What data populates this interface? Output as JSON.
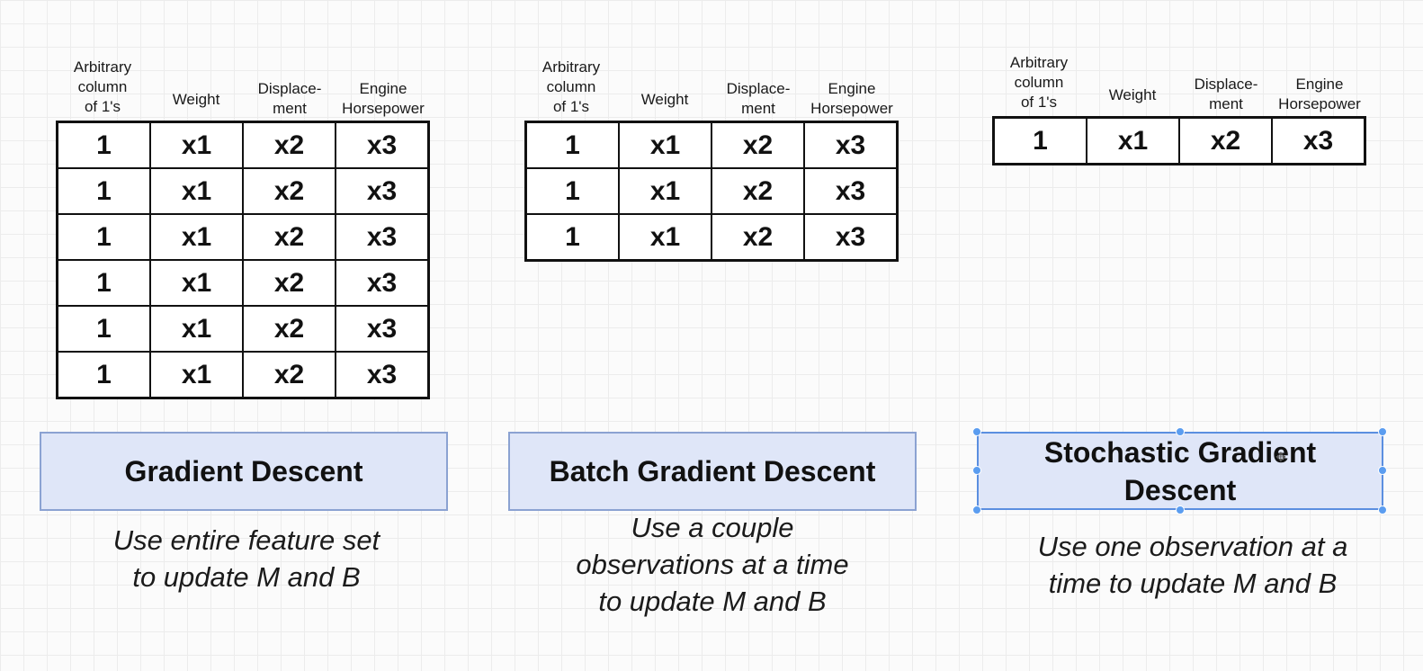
{
  "columns": [
    "Arbitrary\ncolumn\nof 1's",
    "Weight",
    "Displace-\nment",
    "Engine\nHorsepower"
  ],
  "row_values": [
    "1",
    "x1",
    "x2",
    "x3"
  ],
  "panels": [
    {
      "rows": 6,
      "title": "Gradient Descent",
      "description": "Use entire feature set\nto update M and B"
    },
    {
      "rows": 3,
      "title": "Batch Gradient Descent",
      "description": "Use a couple\nobservations at a time\nto update M and B"
    },
    {
      "rows": 1,
      "title": "Stochastic Gradient\nDescent",
      "description": "Use one observation at a\ntime to update M and B"
    }
  ],
  "colors": {
    "box_fill": "#dfe6f8",
    "box_border": "#8ba2d2",
    "selection_handle": "#5b9df0"
  }
}
